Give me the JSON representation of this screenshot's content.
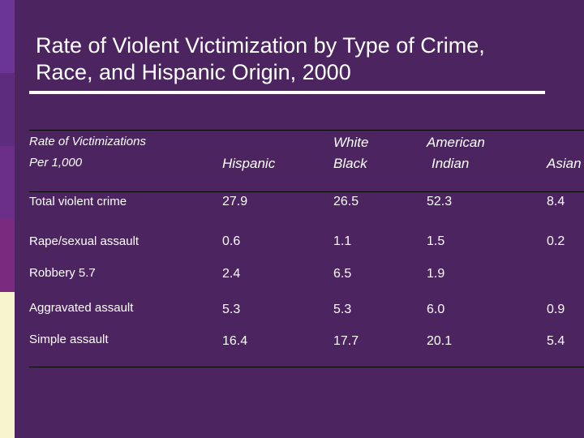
{
  "slide": {
    "title_line1": "Rate of Violent Victimization by Type of Crime,",
    "title_line2": "Race, and Hispanic Origin, 2000"
  },
  "table": {
    "header": {
      "rate_line1": "Rate of Victimizations",
      "rate_line2": "Per 1,000",
      "hispanic": "Hispanic",
      "white": "White",
      "black": "Black",
      "american": "American",
      "indian": "Indian",
      "asian": "Asian"
    },
    "rows": [
      {
        "label": "Total violent crime",
        "hispanic": "27.9",
        "black": "26.5",
        "american_indian": "52.3",
        "asian": "8.4"
      },
      {
        "label": "Rape/sexual assault",
        "hispanic": "0.6",
        "black": "1.1",
        "american_indian": "1.5",
        "asian": "0.2"
      },
      {
        "label": "Robbery 5.7",
        "hispanic": "2.4",
        "black": "6.5",
        "american_indian": "1.9",
        "asian": ""
      },
      {
        "label": "Aggravated assault",
        "hispanic": "5.3",
        "black": "5.3",
        "american_indian": "6.0",
        "asian": "0.9"
      },
      {
        "label": "Simple assault",
        "hispanic": "16.4",
        "black": "17.7",
        "american_indian": "20.1",
        "asian": "5.4"
      }
    ]
  },
  "colors": {
    "background": "#4b2460",
    "text": "#ffffff",
    "rule": "#000000",
    "accent_bar_bottom": "#f7f3cc"
  }
}
